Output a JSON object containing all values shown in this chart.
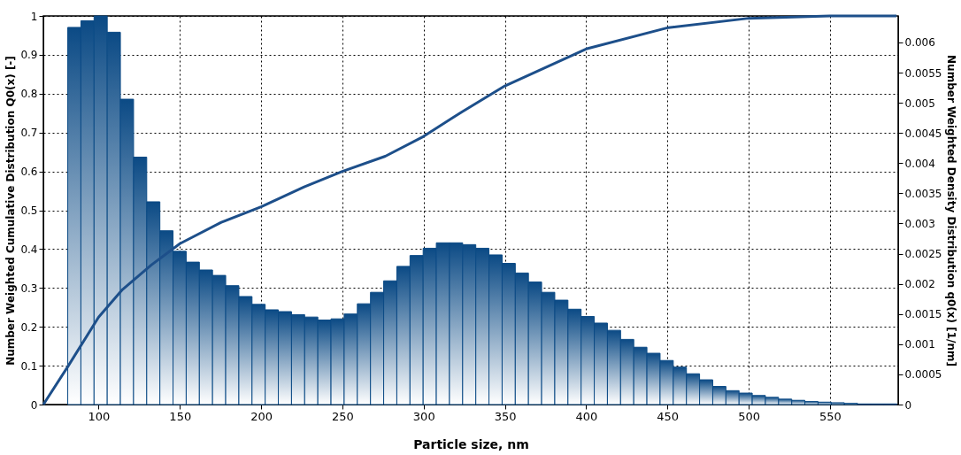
{
  "chart_data": {
    "type": "histogram",
    "xlabel": "Particle size, nm",
    "ylabel": "Number Weighted Cumulative Distribution Q0(x) [-]",
    "y2label": "Number Weighted Density Distribution q0(x) [1/nm]",
    "xlim": [
      66,
      592
    ],
    "xticks": [
      100,
      150,
      200,
      250,
      300,
      350,
      400,
      450,
      500,
      550
    ],
    "ylim": [
      0,
      1
    ],
    "yticks": [
      0,
      0.1,
      0.2,
      0.3,
      0.4,
      0.5,
      0.6,
      0.7,
      0.8,
      0.9,
      1
    ],
    "y2lim": [
      0,
      0.00644
    ],
    "y2ticks": [
      0,
      0.0005,
      0.001,
      0.0015,
      0.002,
      0.0025,
      0.003,
      0.0035,
      0.004,
      0.0045,
      0.005,
      0.0055,
      0.006
    ],
    "grid": true,
    "series": [
      {
        "axis": "y2",
        "color": "#0b4a85",
        "bins": [
          81,
          89.1,
          97.2,
          105.3,
          113.4,
          121.5,
          129.6,
          137.7,
          145.8,
          153.9,
          162,
          170.1,
          178.2,
          186.3,
          194.4,
          202.5,
          210.6,
          218.7,
          226.8,
          234.9,
          243,
          251.1,
          259.2,
          267.3,
          275.4,
          283.5,
          291.6,
          299.7,
          307.8,
          315.9,
          324,
          332.1,
          340.2,
          348.3,
          356.4,
          364.5,
          372.6,
          380.7,
          388.8,
          396.9,
          405,
          413.1,
          421.2,
          429.3,
          437.4,
          445.5,
          453.6,
          461.7,
          469.8,
          477.9,
          486,
          494.1,
          502.2,
          510.3,
          518.4,
          526.5,
          534.6,
          542.7,
          550.8,
          558.9,
          567,
          575.1,
          583.2,
          591.3
        ],
        "values": [
          0.00625,
          0.00636,
          0.00644,
          0.00617,
          0.00506,
          0.0041,
          0.00336,
          0.00288,
          0.00254,
          0.00236,
          0.00223,
          0.00214,
          0.00197,
          0.00179,
          0.00166,
          0.00157,
          0.00154,
          0.00149,
          0.00145,
          0.0014,
          0.00142,
          0.0015,
          0.00167,
          0.00186,
          0.00205,
          0.00229,
          0.00247,
          0.00259,
          0.00268,
          0.00268,
          0.00265,
          0.00259,
          0.00248,
          0.00234,
          0.00218,
          0.00203,
          0.00186,
          0.00173,
          0.00158,
          0.00146,
          0.00135,
          0.00123,
          0.00108,
          0.00095,
          0.00085,
          0.00073,
          0.00062,
          0.00051,
          0.00041,
          0.0003,
          0.00023,
          0.00019,
          0.00015,
          0.00012,
          9e-05,
          7e-05,
          5e-05,
          4e-05,
          3e-05,
          2e-05,
          1e-05,
          1e-05,
          1e-05
        ]
      },
      {
        "type": "line",
        "axis": "y",
        "color": "#1d4f8a",
        "line_style": "solid",
        "marker": "none",
        "x": [
          66,
          81.4,
          100,
          114.7,
          132.4,
          150,
          175.5,
          200,
          226.5,
          250,
          276.4,
          300,
          323.5,
          350,
          400,
          450.6,
          500,
          550,
          591
        ],
        "values": [
          0,
          0.1,
          0.225,
          0.296,
          0.359,
          0.414,
          0.469,
          0.509,
          0.56,
          0.6,
          0.639,
          0.69,
          0.753,
          0.82,
          0.915,
          0.97,
          0.994,
          1.0,
          1.0
        ]
      }
    ]
  }
}
